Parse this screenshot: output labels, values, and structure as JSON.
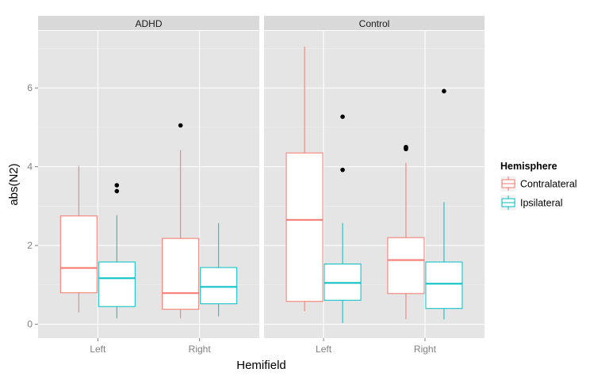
{
  "chart_data": {
    "type": "boxplot",
    "xlabel": "Hemifield",
    "ylabel": "abs(N2)",
    "ylim": [
      -0.35,
      7.45
    ],
    "y_ticks": [
      0,
      2,
      4,
      6
    ],
    "categories": [
      "Left",
      "Right"
    ],
    "legend": {
      "title": "Hemisphere",
      "position": "right",
      "entries": [
        "Contralateral",
        "Ipsilateral"
      ]
    },
    "colors": {
      "Contralateral": "#F8766D",
      "Ipsilateral": "#00BFC4",
      "panel": "#E5E5E5",
      "strip": "#D9D9D9",
      "grid": "#ffffff"
    },
    "grid": true,
    "panels": [
      {
        "label": "ADHD",
        "boxes": [
          {
            "hemifield": "Left",
            "series": "Contralateral",
            "whisker_low": 0.3,
            "q1": 0.8,
            "median": 1.43,
            "q3": 2.75,
            "whisker_high": 4.02,
            "outliers": []
          },
          {
            "hemifield": "Left",
            "series": "Ipsilateral",
            "whisker_low": 0.15,
            "q1": 0.45,
            "median": 1.17,
            "q3": 1.58,
            "whisker_high": 2.77,
            "outliers": [
              3.38,
              3.53
            ]
          },
          {
            "hemifield": "Right",
            "series": "Contralateral",
            "whisker_low": 0.15,
            "q1": 0.38,
            "median": 0.79,
            "q3": 2.18,
            "whisker_high": 4.42,
            "outliers": [
              5.05
            ]
          },
          {
            "hemifield": "Right",
            "series": "Ipsilateral",
            "whisker_low": 0.2,
            "q1": 0.52,
            "median": 0.95,
            "q3": 1.44,
            "whisker_high": 2.57,
            "outliers": []
          }
        ]
      },
      {
        "label": "Control",
        "boxes": [
          {
            "hemifield": "Left",
            "series": "Contralateral",
            "whisker_low": 0.33,
            "q1": 0.58,
            "median": 2.65,
            "q3": 4.35,
            "whisker_high": 7.05,
            "outliers": []
          },
          {
            "hemifield": "Left",
            "series": "Ipsilateral",
            "whisker_low": 0.03,
            "q1": 0.61,
            "median": 1.05,
            "q3": 1.53,
            "whisker_high": 2.57,
            "outliers": [
              3.92,
              5.27
            ]
          },
          {
            "hemifield": "Right",
            "series": "Contralateral",
            "whisker_low": 0.13,
            "q1": 0.78,
            "median": 1.63,
            "q3": 2.2,
            "whisker_high": 4.1,
            "outliers": [
              4.45,
              4.48,
              4.5
            ]
          },
          {
            "hemifield": "Right",
            "series": "Ipsilateral",
            "whisker_low": 0.12,
            "q1": 0.4,
            "median": 1.03,
            "q3": 1.58,
            "whisker_high": 3.1,
            "outliers": [
              5.92
            ]
          }
        ]
      }
    ]
  }
}
